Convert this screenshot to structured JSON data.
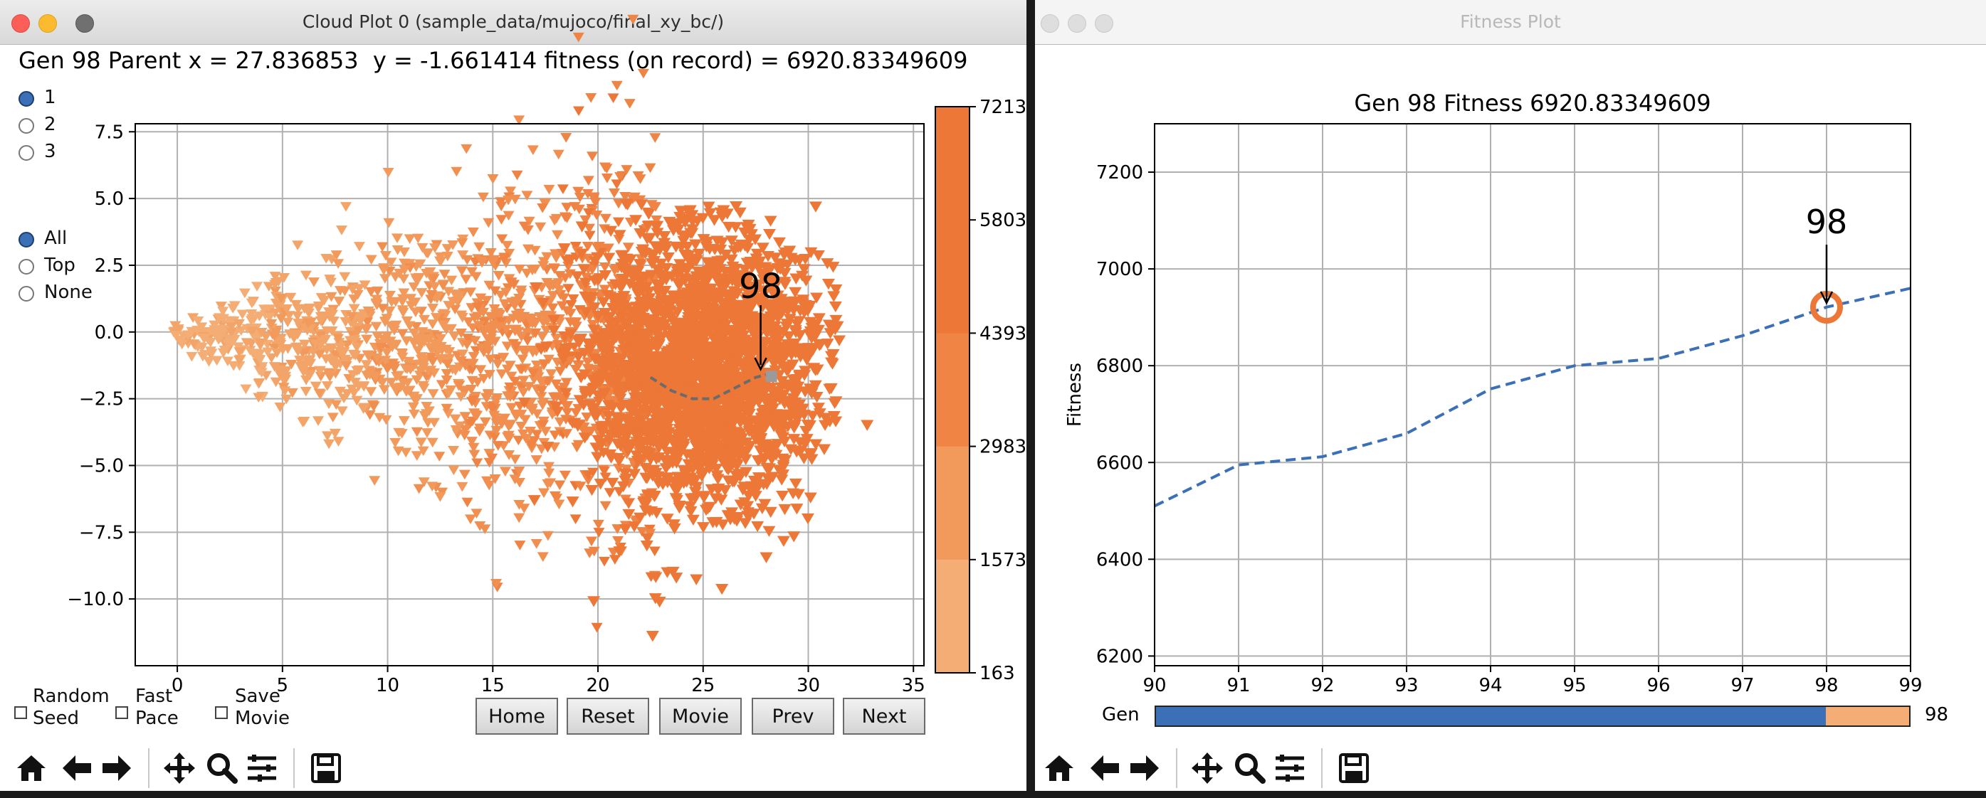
{
  "cloud_window": {
    "title": "Cloud Plot 0 (sample_data/mujoco/final_xy_bc/)",
    "header": "Gen 98 Parent x = 27.836853  y = -1.661414 fitness (on record) = 6920.83349609",
    "rank_options": [
      "1",
      "2",
      "3"
    ],
    "rank_selected": "1",
    "filter_options": [
      "All",
      "Top",
      "None"
    ],
    "filter_selected": "All",
    "checkboxes": [
      {
        "line1": "Random",
        "line2": "Seed"
      },
      {
        "line1": "Fast",
        "line2": "Pace"
      },
      {
        "line1": "Save",
        "line2": "Movie"
      }
    ],
    "buttons": [
      "Home",
      "Reset",
      "Movie",
      "Prev",
      "Next"
    ],
    "annotation": "98",
    "colorbar_ticks": [
      "7213",
      "5803",
      "4393",
      "2983",
      "1573",
      "163"
    ],
    "colorbar_colors": [
      "#ed7736",
      "#ef8445",
      "#f29a5c",
      "#f4ad74"
    ]
  },
  "fitness_window": {
    "title": "Fitness Plot",
    "slider_label": "Gen",
    "slider_value": "98",
    "slider_fraction": 0.889,
    "annotation": "98"
  },
  "toolbar": {
    "icons": [
      "home-icon",
      "back-arrow-icon",
      "forward-arrow-icon",
      "pan-icon",
      "zoom-icon",
      "configure-subplots-icon",
      "save-icon"
    ]
  },
  "colors": {
    "series_line": "#3b6fb6",
    "marker_orange": "#ed7736",
    "light_orange": "#f4ad74",
    "slider_fill": "#3b6fb6"
  },
  "chart_data": [
    {
      "type": "scatter",
      "title": "",
      "xlabel": "",
      "ylabel": "",
      "xlim": [
        -2,
        35.5
      ],
      "ylim": [
        -12.5,
        7.8
      ],
      "xticks": [
        "0",
        "5",
        "10",
        "15",
        "20",
        "25",
        "30",
        "35"
      ],
      "yticks": [
        "7.5",
        "5.0",
        "2.5",
        "0.0",
        "−2.5",
        "−5.0",
        "−7.5",
        "−10.0"
      ],
      "marker": "triangle-down",
      "grid": true,
      "parent": {
        "x": 27.836853,
        "y": -1.661414,
        "fitness": 6920.83349609
      },
      "parent_trail": {
        "x": [
          22.5,
          23.5,
          24.5,
          25.5,
          26.5,
          27.5,
          28.0
        ],
        "y": [
          -1.7,
          -2.2,
          -2.5,
          -2.5,
          -2.1,
          -1.7,
          -1.6
        ]
      }
    },
    {
      "type": "line",
      "title": "Gen 98  Fitness 6920.83349609",
      "xlabel": "",
      "ylabel": "Fitness",
      "xlim": [
        90,
        99
      ],
      "ylim": [
        6180,
        7300
      ],
      "xticks": [
        "90",
        "91",
        "92",
        "93",
        "94",
        "95",
        "96",
        "97",
        "98",
        "99"
      ],
      "yticks": [
        "7200",
        "7000",
        "6800",
        "6600",
        "6400",
        "6200"
      ],
      "grid": true,
      "series": [
        {
          "x": [
            90,
            91,
            92,
            93,
            94,
            95,
            96,
            97,
            98,
            99
          ],
          "values": [
            6510,
            6595,
            6612,
            6660,
            6752,
            6800,
            6815,
            6862,
            6921,
            6960
          ]
        }
      ],
      "highlight": {
        "x": 98,
        "y": 6920.83
      }
    }
  ]
}
